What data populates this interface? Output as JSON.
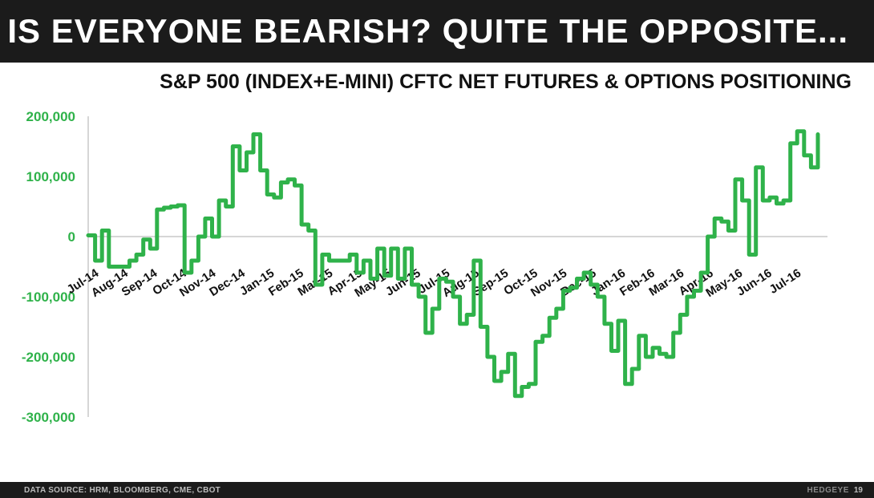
{
  "header": {
    "title": "IS EVERYONE BEARISH? QUITE THE OPPOSITE..."
  },
  "chart_data": {
    "type": "line",
    "title": "S&P 500 (INDEX+E-MINI) CFTC NET FUTURES & OPTIONS POSITIONING",
    "xlabel": "",
    "ylabel": "",
    "ylim": [
      -300000,
      200000
    ],
    "yticks": [
      200000,
      100000,
      0,
      -100000,
      -200000,
      -300000
    ],
    "ytick_labels": [
      "200,000",
      "100,000",
      "0",
      "-100,000",
      "-200,000",
      "-300,000"
    ],
    "x_tick_labels": [
      "Jul-14",
      "Aug-14",
      "Sep-14",
      "Oct-14",
      "Nov-14",
      "Dec-14",
      "Jan-15",
      "Feb-15",
      "Mar-15",
      "Apr-15",
      "May-15",
      "Jun-15",
      "Jul-15",
      "Aug-15",
      "Sep-15",
      "Oct-15",
      "Nov-15",
      "Dec-15",
      "Jan-16",
      "Feb-16",
      "Mar-16",
      "Apr-16",
      "May-16",
      "Jun-16",
      "Jul-16"
    ],
    "grid": false,
    "line_color": "#2fb24a",
    "series": [
      {
        "values": [
          2000,
          -40000,
          10000,
          -50000,
          -50000,
          -50000,
          -40000,
          -30000,
          -5000,
          -20000,
          45000,
          48000,
          50000,
          52000,
          -60000,
          -40000,
          0,
          30000,
          0,
          60000,
          50000,
          150000,
          110000,
          140000,
          170000,
          110000,
          70000,
          65000,
          90000,
          95000,
          85000,
          20000,
          10000,
          -80000,
          -30000,
          -40000,
          -40000,
          -40000,
          -30000,
          -60000,
          -40000,
          -70000,
          -20000,
          -65000,
          -20000,
          -70000,
          -20000,
          -80000,
          -100000,
          -160000,
          -120000,
          -70000,
          -75000,
          -100000,
          -145000,
          -130000,
          -40000,
          -150000,
          -200000,
          -240000,
          -225000,
          -195000,
          -265000,
          -250000,
          -245000,
          -175000,
          -165000,
          -135000,
          -120000,
          -90000,
          -85000,
          -70000,
          -60000,
          -80000,
          -100000,
          -145000,
          -190000,
          -140000,
          -245000,
          -220000,
          -165000,
          -200000,
          -185000,
          -195000,
          -200000,
          -160000,
          -130000,
          -100000,
          -90000,
          -60000,
          0,
          30000,
          25000,
          10000,
          95000,
          60000,
          -30000,
          115000,
          60000,
          65000,
          55000,
          60000,
          155000,
          175000,
          135000,
          115000,
          170000
        ]
      }
    ]
  },
  "footer": {
    "source": "DATA SOURCE: HRM, BLOOMBERG, CME, CBOT",
    "brand": "HEDGEYE",
    "page": "19"
  }
}
